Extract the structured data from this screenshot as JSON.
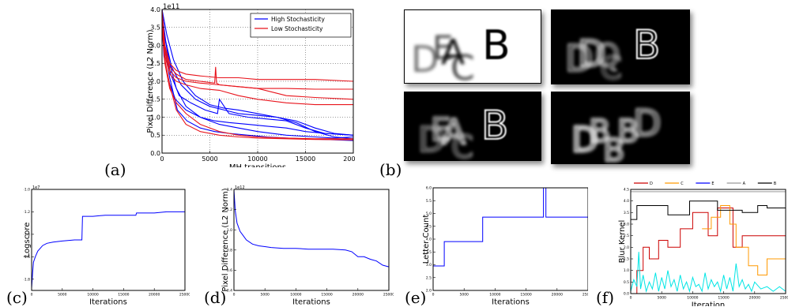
{
  "panel_labels": {
    "a": "(a)",
    "b": "(b)",
    "c": "(c)",
    "d": "(d)",
    "e": "(e)",
    "f": "(f)"
  },
  "colors": {
    "blue": "#0000ff",
    "red": "#e8141c",
    "orange": "#ff9900",
    "cyan": "#00e5e5",
    "gray": "#999999",
    "black": "#000000",
    "dark_red": "#cc0000"
  },
  "chart_data": [
    {
      "id": "a",
      "type": "line",
      "xlabel": "MH transitions",
      "ylabel": "Pixel Difference (L2 Norm)",
      "offset_text": "1e11",
      "xlim": [
        0,
        20000
      ],
      "ylim": [
        0,
        4.0
      ],
      "xticks": [
        "0",
        "5000",
        "10000",
        "15000",
        "20000"
      ],
      "yticks": [
        "0.0",
        "0.5",
        "1.0",
        "1.5",
        "2.0",
        "2.5",
        "3.0",
        "3.5",
        "4.0"
      ],
      "legend": [
        "High Stochasticity",
        "Low Stochasticity"
      ],
      "legend_loc": "upper right",
      "grid": true,
      "series": [
        {
          "name": "High Stochasticity",
          "color": "blue",
          "x": [
            0,
            300,
            800,
            1500,
            2500,
            4000,
            6000,
            8000,
            10000,
            13000,
            16000,
            18000,
            20000
          ],
          "y": [
            4.0,
            3.2,
            2.5,
            1.8,
            1.3,
            1.0,
            0.8,
            0.7,
            0.6,
            0.5,
            0.45,
            0.42,
            0.45
          ]
        },
        {
          "name": "High Stochasticity",
          "color": "blue",
          "x": [
            0,
            300,
            900,
            1800,
            3000,
            4500,
            5800,
            6000,
            7000,
            9000,
            11000,
            13000,
            15000,
            17000,
            20000
          ],
          "y": [
            3.8,
            3.0,
            2.2,
            1.6,
            1.4,
            1.2,
            1.1,
            1.5,
            1.1,
            1.0,
            0.95,
            0.9,
            0.7,
            0.55,
            0.5
          ]
        },
        {
          "name": "High Stochasticity",
          "color": "blue",
          "x": [
            0,
            200,
            700,
            1400,
            2500,
            4000,
            5500,
            7000,
            9000,
            11000,
            13000,
            15000,
            17000,
            20000
          ],
          "y": [
            3.6,
            2.7,
            2.0,
            1.5,
            1.2,
            1.0,
            0.9,
            0.85,
            0.8,
            0.75,
            0.7,
            0.6,
            0.55,
            0.5
          ]
        },
        {
          "name": "High Stochasticity",
          "color": "blue",
          "x": [
            0,
            400,
            1000,
            2000,
            3500,
            5000,
            6500,
            8000,
            10000,
            12000,
            14000,
            16000,
            18000,
            20000
          ],
          "y": [
            3.9,
            3.1,
            2.4,
            1.9,
            1.5,
            1.3,
            1.2,
            1.1,
            1.05,
            1.0,
            0.9,
            0.7,
            0.55,
            0.5
          ]
        },
        {
          "name": "High Stochasticity",
          "color": "blue",
          "x": [
            0,
            300,
            800,
            1600,
            2600,
            4000,
            5500,
            7000,
            9000,
            11000,
            13000,
            15000,
            17000,
            20000
          ],
          "y": [
            3.7,
            2.9,
            2.1,
            1.2,
            0.9,
            0.7,
            0.6,
            0.55,
            0.5,
            0.45,
            0.42,
            0.4,
            0.38,
            0.35
          ]
        },
        {
          "name": "High Stochasticity",
          "color": "blue",
          "x": [
            0,
            500,
            1200,
            2200,
            3500,
            5000,
            6500,
            8000,
            10000,
            12000,
            14000,
            16000,
            18000,
            20000
          ],
          "y": [
            4.0,
            3.3,
            2.6,
            2.0,
            1.6,
            1.35,
            1.25,
            1.2,
            1.1,
            1.0,
            0.85,
            0.6,
            0.45,
            0.4
          ]
        },
        {
          "name": "Low Stochasticity",
          "color": "red",
          "x": [
            0,
            300,
            800,
            1500,
            2500,
            4000,
            6000,
            8000,
            10000,
            13000,
            16000,
            20000
          ],
          "y": [
            4.0,
            3.0,
            2.5,
            2.3,
            2.2,
            2.15,
            2.1,
            2.1,
            2.05,
            2.05,
            2.05,
            2.0
          ]
        },
        {
          "name": "Low Stochasticity",
          "color": "red",
          "x": [
            0,
            300,
            800,
            1500,
            2500,
            4000,
            6000,
            8000,
            10000,
            13000,
            16000,
            20000
          ],
          "y": [
            3.8,
            2.8,
            2.3,
            2.1,
            2.0,
            1.95,
            1.9,
            1.85,
            1.8,
            1.8,
            1.78,
            1.78
          ]
        },
        {
          "name": "Low Stochasticity",
          "color": "red",
          "x": [
            0,
            300,
            800,
            1500,
            2500,
            4000,
            5500,
            5600,
            5700,
            6000,
            8000,
            10000,
            13000,
            16000,
            20000
          ],
          "y": [
            3.9,
            2.9,
            2.4,
            2.2,
            2.05,
            2.0,
            1.95,
            2.4,
            1.95,
            1.9,
            1.85,
            1.8,
            1.6,
            1.55,
            1.5
          ]
        },
        {
          "name": "Low Stochasticity",
          "color": "red",
          "x": [
            0,
            300,
            800,
            1500,
            2500,
            4000,
            6000,
            8000,
            10000,
            13000,
            16000,
            20000
          ],
          "y": [
            3.6,
            2.7,
            2.2,
            2.0,
            1.9,
            1.8,
            1.75,
            1.6,
            1.5,
            1.4,
            1.35,
            1.35
          ]
        },
        {
          "name": "Low Stochasticity",
          "color": "red",
          "x": [
            0,
            300,
            800,
            1500,
            2500,
            4000,
            6000,
            8000,
            10000,
            13000,
            16000,
            20000
          ],
          "y": [
            3.5,
            2.5,
            1.8,
            1.4,
            1.1,
            0.8,
            0.6,
            0.5,
            0.45,
            0.42,
            0.4,
            0.4
          ]
        },
        {
          "name": "Low Stochasticity",
          "color": "red",
          "x": [
            0,
            300,
            800,
            1500,
            2500,
            4000,
            6000,
            8000,
            10000,
            13000,
            16000,
            20000
          ],
          "y": [
            3.7,
            2.6,
            1.9,
            1.2,
            0.8,
            0.6,
            0.5,
            0.45,
            0.42,
            0.4,
            0.38,
            0.37
          ]
        }
      ]
    },
    {
      "id": "c",
      "type": "line",
      "xlabel": "Iterations",
      "ylabel": "Logscore",
      "offset_text": "1e7",
      "xlim": [
        0,
        25000
      ],
      "ylim": [
        -1.9,
        -1.0
      ],
      "xticks": [
        "0",
        "5000",
        "10000",
        "15000",
        "20000",
        "25000"
      ],
      "yticks": [
        "-1.0",
        "-1.2",
        "-1.4",
        "-1.6",
        "-1.8"
      ],
      "series": [
        {
          "color": "blue",
          "x": [
            0,
            150,
            300,
            600,
            1000,
            1800,
            2500,
            3500,
            5000,
            7000,
            8200,
            8300,
            10000,
            12000,
            14000,
            16000,
            17000,
            17100,
            20000,
            22000,
            24000,
            25000
          ],
          "y": [
            -1.88,
            -1.75,
            -1.65,
            -1.6,
            -1.55,
            -1.5,
            -1.48,
            -1.47,
            -1.46,
            -1.45,
            -1.45,
            -1.24,
            -1.24,
            -1.23,
            -1.23,
            -1.23,
            -1.23,
            -1.21,
            -1.21,
            -1.2,
            -1.2,
            -1.2
          ]
        }
      ]
    },
    {
      "id": "d",
      "type": "line",
      "xlabel": "Iterations",
      "ylabel": "Pixel Difference (L2 Norm)",
      "offset_text": "1e12",
      "xlim": [
        0,
        25000
      ],
      "ylim": [
        0.2,
        1.4
      ],
      "xticks": [
        "0",
        "5000",
        "10000",
        "15000",
        "20000",
        "25000"
      ],
      "yticks": [
        "0.4",
        "0.6",
        "0.8",
        "1.0",
        "1.2",
        "1.4"
      ],
      "series": [
        {
          "color": "blue",
          "x": [
            0,
            200,
            500,
            1000,
            1500,
            2000,
            3000,
            4000,
            5000,
            6000,
            8000,
            10000,
            12000,
            14000,
            16000,
            18000,
            19000,
            20000,
            21000,
            22000,
            23000,
            24000,
            25000
          ],
          "y": [
            1.4,
            1.15,
            1.0,
            0.9,
            0.85,
            0.8,
            0.75,
            0.73,
            0.72,
            0.71,
            0.7,
            0.7,
            0.69,
            0.69,
            0.69,
            0.68,
            0.66,
            0.6,
            0.6,
            0.57,
            0.55,
            0.5,
            0.48
          ]
        }
      ]
    },
    {
      "id": "e",
      "type": "line",
      "xlabel": "Iterations",
      "ylabel": "Letter Count",
      "xlim": [
        0,
        25000
      ],
      "ylim": [
        2.0,
        6.2
      ],
      "xticks": [
        "0",
        "5000",
        "10000",
        "15000",
        "20000",
        "25000"
      ],
      "yticks": [
        "2.0",
        "2.5",
        "3.0",
        "3.5",
        "4.0",
        "4.5",
        "5.0",
        "5.5",
        "6.0"
      ],
      "series": [
        {
          "color": "blue",
          "x": [
            0,
            1800,
            1800,
            8000,
            8000,
            17800,
            17800,
            18200,
            18200,
            25000
          ],
          "y": [
            3,
            3,
            4,
            4,
            5,
            5,
            6.2,
            6.2,
            5,
            5
          ]
        }
      ]
    },
    {
      "id": "f",
      "type": "line",
      "xlabel": "Iteration",
      "ylabel": "Blur Kernel",
      "xlim": [
        0,
        25000
      ],
      "ylim": [
        0.0,
        4.5
      ],
      "xticks": [
        "0",
        "5000",
        "10000",
        "15000",
        "20000",
        "25000"
      ],
      "yticks": [
        "0.0",
        "0.5",
        "1.0",
        "1.5",
        "2.0",
        "2.5",
        "3.0",
        "3.5",
        "4.0",
        "4.5"
      ],
      "legend": [
        "D",
        "C",
        "E",
        "A",
        "B"
      ],
      "legend_loc": "top",
      "series": [
        {
          "name": "D",
          "color": "dark_red",
          "x": [
            0,
            1000,
            1000,
            2000,
            2000,
            3000,
            3000,
            4500,
            4500,
            6000,
            6000,
            8000,
            8000,
            10000,
            10000,
            12500,
            12500,
            14000,
            14000,
            16500,
            16500,
            18000,
            18000,
            25000
          ],
          "y": [
            0.0,
            0.0,
            1.0,
            1.0,
            2.0,
            2.0,
            1.5,
            1.5,
            2.3,
            2.3,
            2.0,
            2.0,
            2.8,
            2.8,
            3.5,
            3.5,
            2.5,
            2.5,
            3.7,
            3.7,
            2.0,
            2.0,
            2.5,
            2.5
          ]
        },
        {
          "name": "C",
          "color": "orange",
          "x": [
            11500,
            13000,
            13000,
            14500,
            14500,
            16000,
            16000,
            17000,
            17000,
            19000,
            19000,
            20500,
            20500,
            22000,
            22000,
            25000
          ],
          "y": [
            2.8,
            2.8,
            3.3,
            3.3,
            3.8,
            3.8,
            3.0,
            3.0,
            2.0,
            2.0,
            1.2,
            1.2,
            0.8,
            0.8,
            1.5,
            1.5
          ]
        },
        {
          "name": "E",
          "color": "cyan",
          "x": [
            0,
            500,
            1000,
            1300,
            1600,
            2000,
            2500,
            3000,
            3500,
            4000,
            4500,
            5000,
            5500,
            6000,
            6500,
            7000,
            7500,
            8000,
            8500,
            9000,
            9500,
            10000,
            10500,
            11000,
            11500,
            12000,
            12500,
            13000,
            13500,
            14000,
            14500,
            15000,
            15500,
            16000,
            16500,
            17000,
            17500,
            18000,
            18500,
            19000,
            19500,
            20000,
            21000,
            22000,
            23000,
            24000,
            25000
          ],
          "y": [
            0.1,
            0.6,
            0.3,
            1.8,
            0.2,
            0.8,
            0.1,
            0.5,
            0.2,
            0.9,
            0.1,
            0.7,
            0.2,
            1.0,
            0.3,
            0.6,
            0.1,
            0.8,
            0.2,
            0.5,
            0.1,
            0.7,
            0.3,
            0.4,
            0.1,
            0.9,
            0.2,
            0.6,
            0.3,
            0.5,
            0.1,
            0.8,
            0.2,
            0.7,
            0.1,
            1.3,
            0.3,
            0.6,
            0.2,
            0.4,
            0.1,
            0.5,
            0.2,
            0.3,
            0.1,
            0.3,
            0.1
          ]
        },
        {
          "name": "A",
          "color": "gray",
          "x": [
            0,
            1000,
            1000,
            18000,
            18000,
            25000
          ],
          "y": [
            4.4,
            4.4,
            4.4,
            4.4,
            4.4,
            4.4
          ]
        },
        {
          "name": "B",
          "color": "black",
          "x": [
            0,
            1000,
            1000,
            6000,
            6000,
            9500,
            9500,
            14000,
            14000,
            18000,
            18000,
            20500,
            20500,
            22000,
            22000,
            25000
          ],
          "y": [
            3.2,
            3.2,
            3.8,
            3.8,
            3.4,
            3.4,
            4.0,
            4.0,
            3.6,
            3.6,
            3.5,
            3.5,
            3.8,
            3.8,
            3.7,
            3.7
          ]
        }
      ]
    }
  ],
  "image_panels": {
    "letters": [
      {
        "tile": "top-left",
        "text": "DEACB"
      },
      {
        "tile": "top-right",
        "text": "DDQCB"
      },
      {
        "tile": "bottom-left",
        "text": "DEACB"
      },
      {
        "tile": "bottom-right",
        "text": "DBBBD"
      }
    ]
  }
}
